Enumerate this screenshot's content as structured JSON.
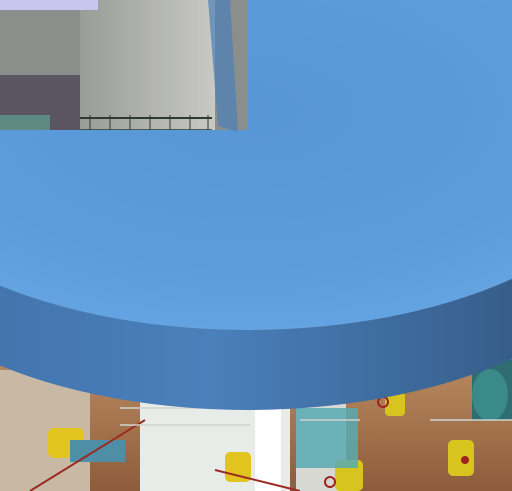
{
  "chart_data": {
    "type": "pie",
    "title": "",
    "view": "3d-exploded-cropped",
    "slices": [
      {
        "label": "",
        "value": 75,
        "color": "#5b9ad8"
      },
      {
        "label": "",
        "value": 25,
        "color": "#c9c8f0"
      }
    ],
    "background": "industrial-pump-hall-photo"
  }
}
